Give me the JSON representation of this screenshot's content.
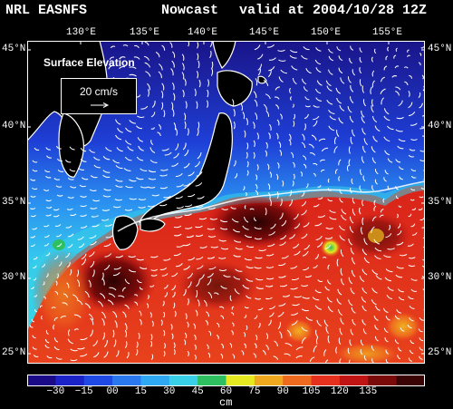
{
  "header": {
    "model": "NRL EASNFS",
    "product": "Nowcast",
    "valid": "valid at 2004/10/28 12Z"
  },
  "map": {
    "lon_labels": [
      "130°E",
      "135°E",
      "140°E",
      "145°E",
      "150°E",
      "155°E"
    ],
    "lat_labels": [
      "45°N",
      "40°N",
      "35°N",
      "30°N",
      "25°N"
    ],
    "field": "Surface Elevation",
    "vector_scale": "20 cm/s",
    "colors": {
      "land": "#000000",
      "coast": "#ffffff",
      "vectors": "#ffffff"
    }
  },
  "colorbar": {
    "ticks": [
      "−30",
      "−15",
      "00",
      "15",
      "30",
      "45",
      "60",
      "75",
      "90",
      "105",
      "120",
      "135"
    ],
    "units": "cm",
    "colors": [
      "#1a0a88",
      "#1a22c8",
      "#1f49e6",
      "#2a78f0",
      "#2ea8f2",
      "#37d0e8",
      "#2ec060",
      "#e6e820",
      "#f0a81e",
      "#ee6a1e",
      "#e6301e",
      "#c01414",
      "#7a0a0a",
      "#3a0404"
    ]
  }
}
